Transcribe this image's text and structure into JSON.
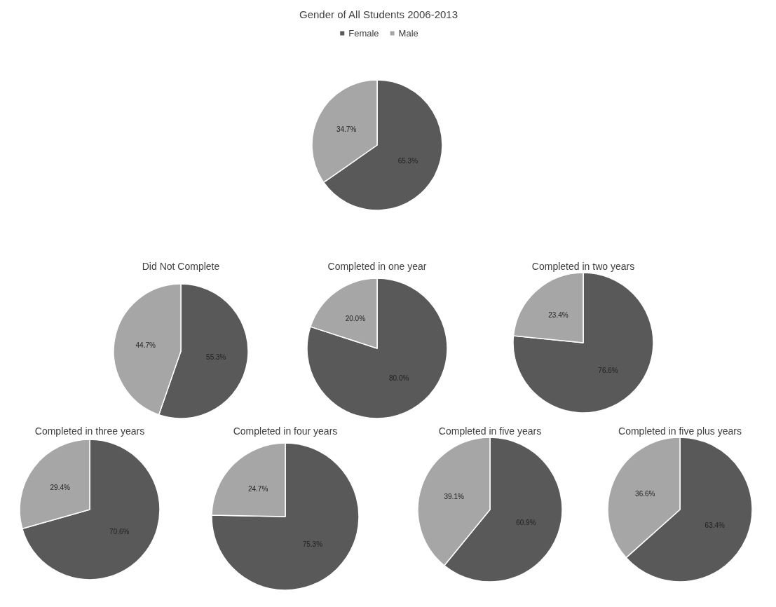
{
  "chart_data": [
    {
      "type": "pie",
      "title": "Gender of All Students 2006-2013",
      "categories": [
        "Female",
        "Male"
      ],
      "values": [
        65.3,
        34.7
      ],
      "colors": [
        "#595959",
        "#a6a6a6"
      ],
      "value_labels": [
        "65.3%",
        "34.7%"
      ],
      "legend": "top"
    },
    {
      "type": "pie",
      "title": "Did Not Complete",
      "categories": [
        null,
        null
      ],
      "values": [
        55.3,
        44.7
      ],
      "colors": [
        "#595959",
        "#a6a6a6"
      ],
      "value_labels": [
        "55.3%",
        "44.7%"
      ]
    },
    {
      "type": "pie",
      "title": "Completed in one year",
      "categories": [
        null,
        null
      ],
      "values": [
        80.0,
        20.0
      ],
      "colors": [
        "#595959",
        "#a6a6a6"
      ],
      "value_labels": [
        "80.0%",
        "20.0%"
      ]
    },
    {
      "type": "pie",
      "title": "Completed in two years",
      "categories": [
        null,
        null
      ],
      "values": [
        76.6,
        23.4
      ],
      "colors": [
        "#595959",
        "#a6a6a6"
      ],
      "value_labels": [
        "76.6%",
        "23.4%"
      ]
    },
    {
      "type": "pie",
      "title": "Completed in three years",
      "categories": [
        null,
        null
      ],
      "values": [
        70.6,
        29.4
      ],
      "colors": [
        "#595959",
        "#a6a6a6"
      ],
      "value_labels": [
        "70.6%",
        "29.4%"
      ]
    },
    {
      "type": "pie",
      "title": "Completed in four years",
      "categories": [
        null,
        null
      ],
      "values": [
        75.3,
        24.7
      ],
      "colors": [
        "#595959",
        "#a6a6a6"
      ],
      "value_labels": [
        "75.3%",
        "24.7%"
      ]
    },
    {
      "type": "pie",
      "title": "Completed in five years",
      "categories": [
        null,
        null
      ],
      "values": [
        60.9,
        39.1
      ],
      "colors": [
        "#595959",
        "#a6a6a6"
      ],
      "value_labels": [
        "60.9%",
        "39.1%"
      ]
    },
    {
      "type": "pie",
      "title": "Completed in five plus years",
      "categories": [
        null,
        null
      ],
      "values": [
        63.4,
        36.6
      ],
      "colors": [
        "#595959",
        "#a6a6a6"
      ],
      "value_labels": [
        "63.4%",
        "36.6%"
      ]
    }
  ]
}
